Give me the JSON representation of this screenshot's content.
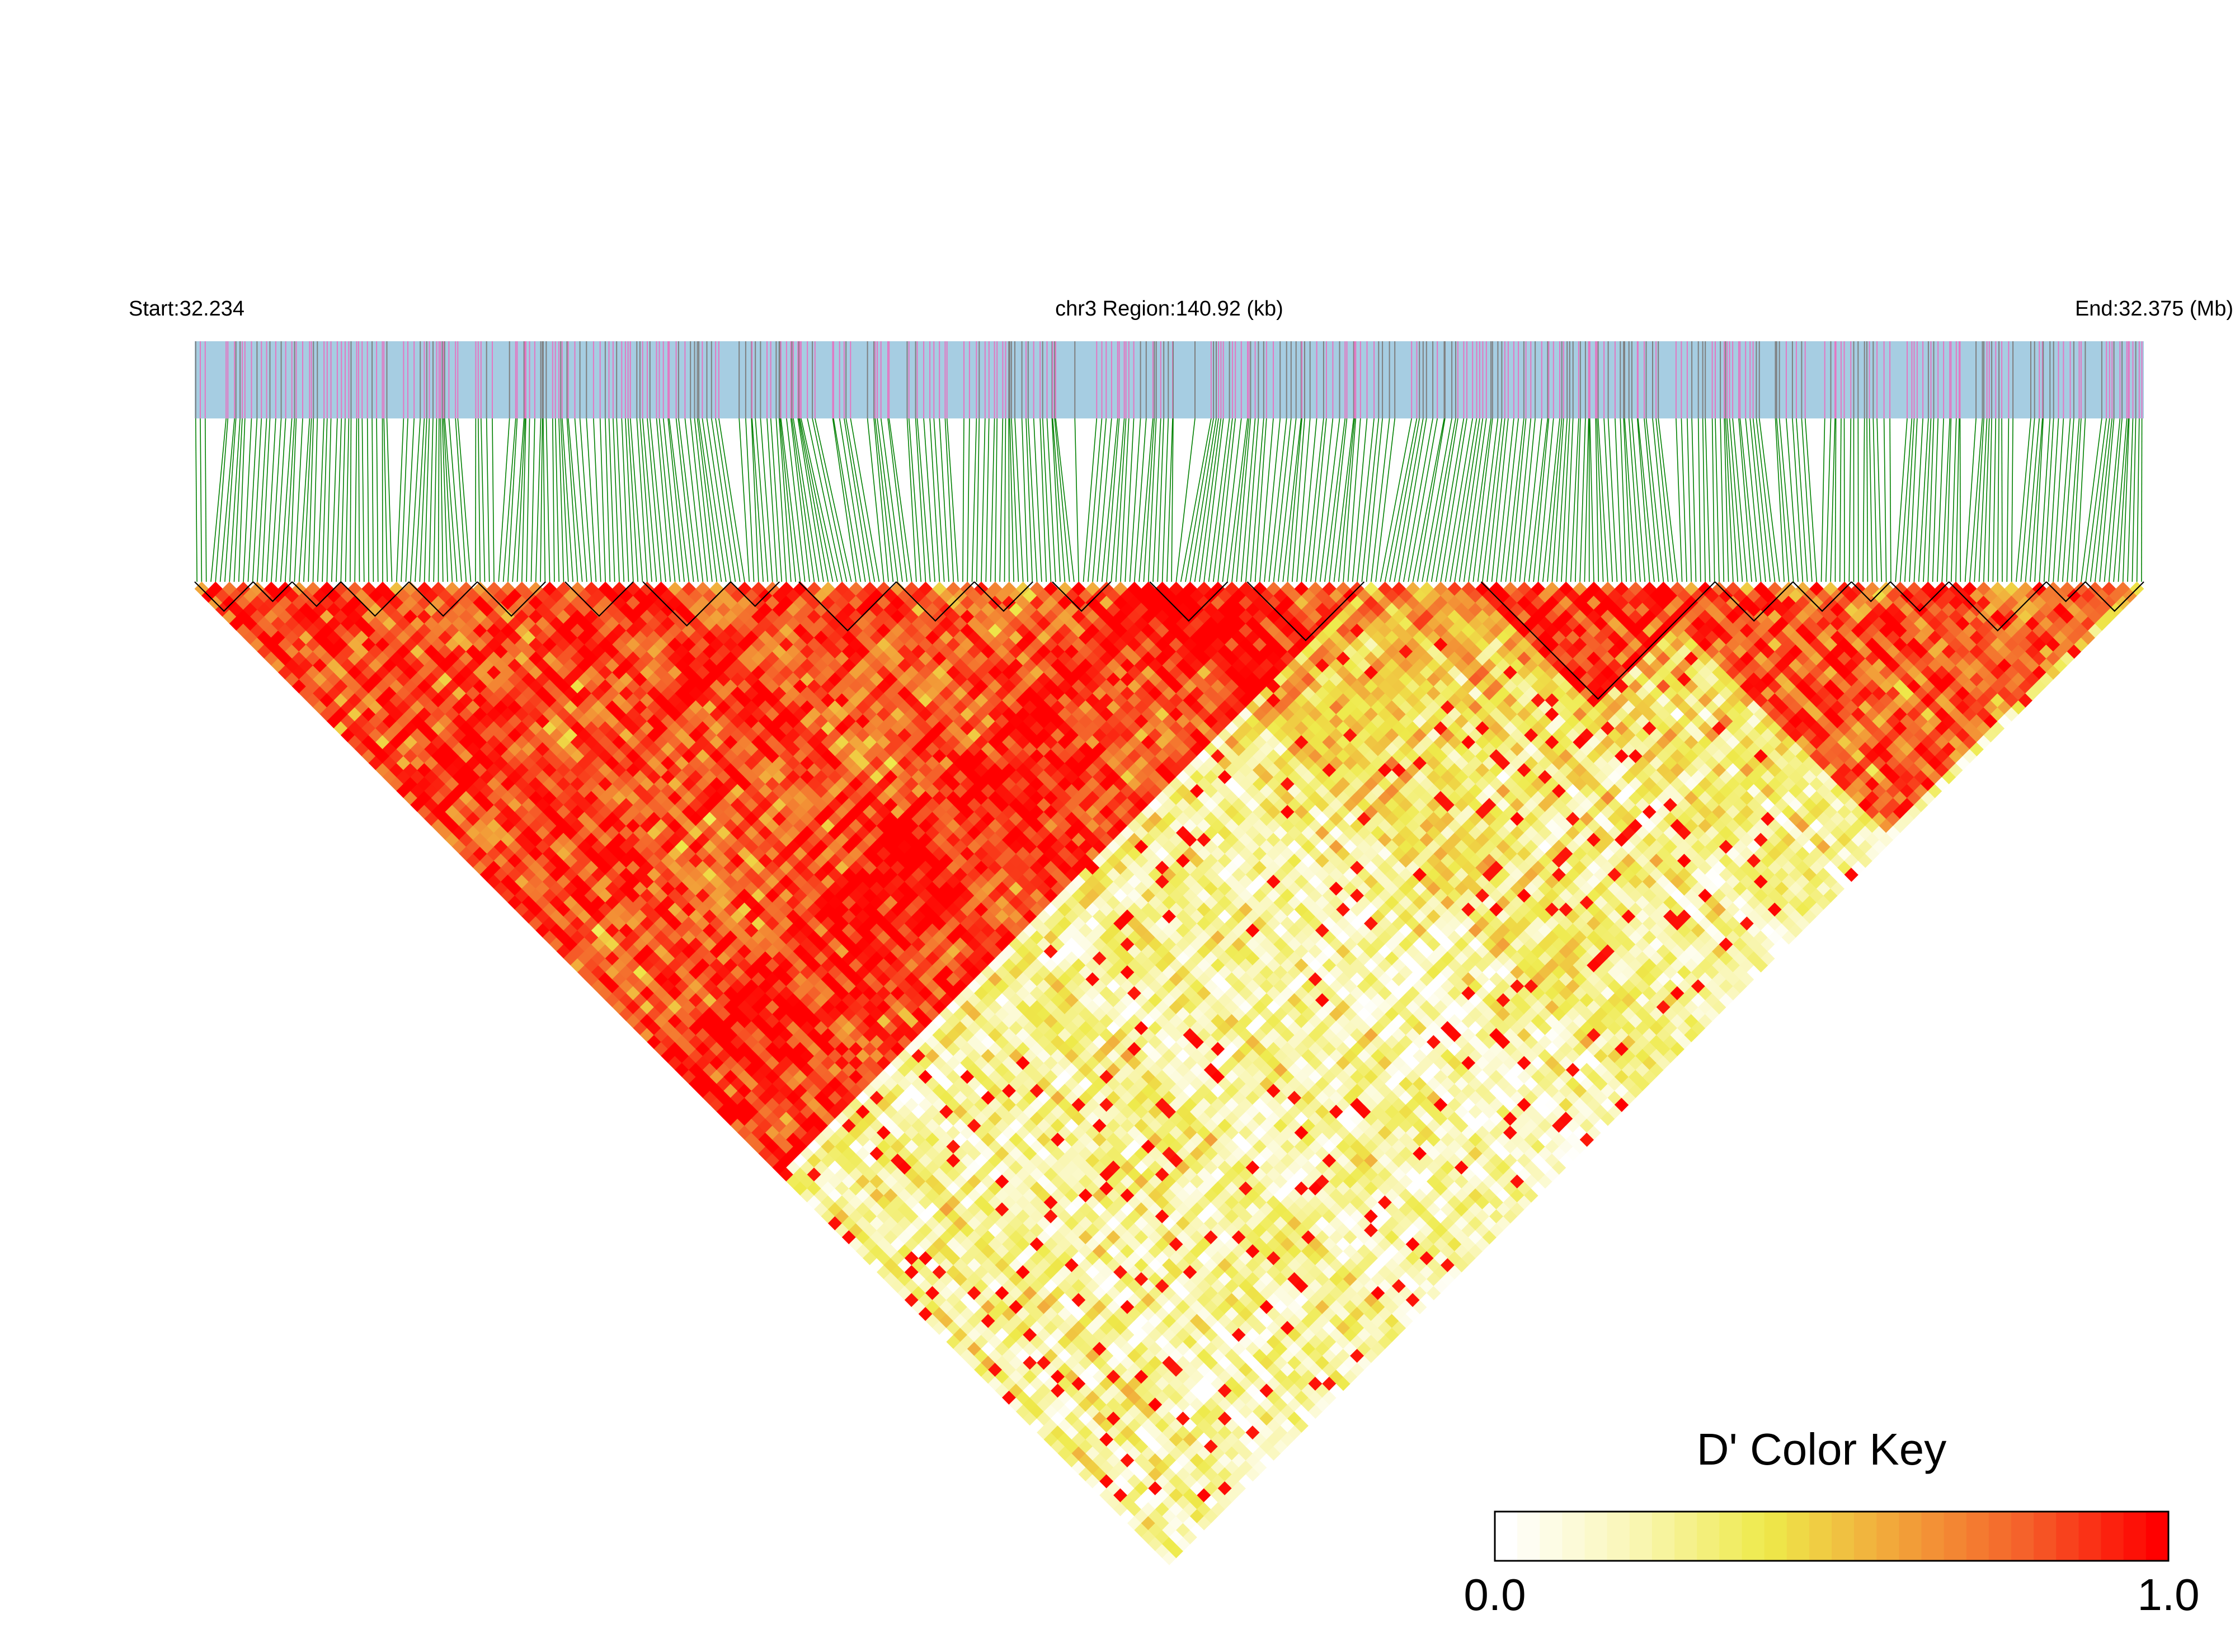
{
  "header": {
    "start_label": "Start:32.234",
    "region_label": "chr3 Region:140.92 (kb)",
    "end_label": "End:32.375 (Mb)"
  },
  "chart_data": {
    "type": "heatmap",
    "subtype": "ld-triangle",
    "chromosome": "chr3",
    "region_start_mb": 32.234,
    "region_end_mb": 32.375,
    "region_length_kb": 140.92,
    "statistic": "D'",
    "snp_count_approx": 420,
    "snp_track": {
      "background_color": "#a6cde2",
      "tick_colors": [
        "#e377c2",
        "#7f7f7f"
      ]
    },
    "connector_color": "#008000",
    "ld_blocks_fraction": [
      [
        0.0,
        0.03
      ],
      [
        0.03,
        0.05
      ],
      [
        0.05,
        0.075
      ],
      [
        0.075,
        0.11
      ],
      [
        0.11,
        0.145
      ],
      [
        0.145,
        0.18
      ],
      [
        0.19,
        0.225
      ],
      [
        0.23,
        0.275
      ],
      [
        0.275,
        0.3
      ],
      [
        0.31,
        0.36
      ],
      [
        0.36,
        0.4
      ],
      [
        0.4,
        0.43
      ],
      [
        0.44,
        0.47
      ],
      [
        0.49,
        0.53
      ],
      [
        0.54,
        0.6
      ],
      [
        0.66,
        0.78
      ],
      [
        0.78,
        0.82
      ],
      [
        0.82,
        0.85
      ],
      [
        0.85,
        0.87
      ],
      [
        0.87,
        0.9
      ],
      [
        0.9,
        0.95
      ],
      [
        0.95,
        0.97
      ],
      [
        0.97,
        1.0
      ]
    ],
    "high_ld_regions": [
      {
        "start": 0.0,
        "end": 0.6,
        "value": 0.95
      },
      {
        "start": 0.04,
        "end": 0.42,
        "value": 0.82
      },
      {
        "start": 0.35,
        "end": 0.5,
        "value": 0.9
      },
      {
        "start": 0.66,
        "end": 0.78,
        "value": 1.0
      },
      {
        "start": 0.74,
        "end": 0.99,
        "value": 0.92
      },
      {
        "start": 0.28,
        "end": 0.43,
        "value": 0.75
      }
    ],
    "color_key": {
      "title": "D' Color Key",
      "min_label": "0.0",
      "max_label": "1.0",
      "min": 0.0,
      "max": 1.0,
      "colors": [
        "#ffffff",
        "#f9f6b4",
        "#eeea4a",
        "#f2a43a",
        "#f5602a",
        "#ff0000"
      ]
    }
  }
}
